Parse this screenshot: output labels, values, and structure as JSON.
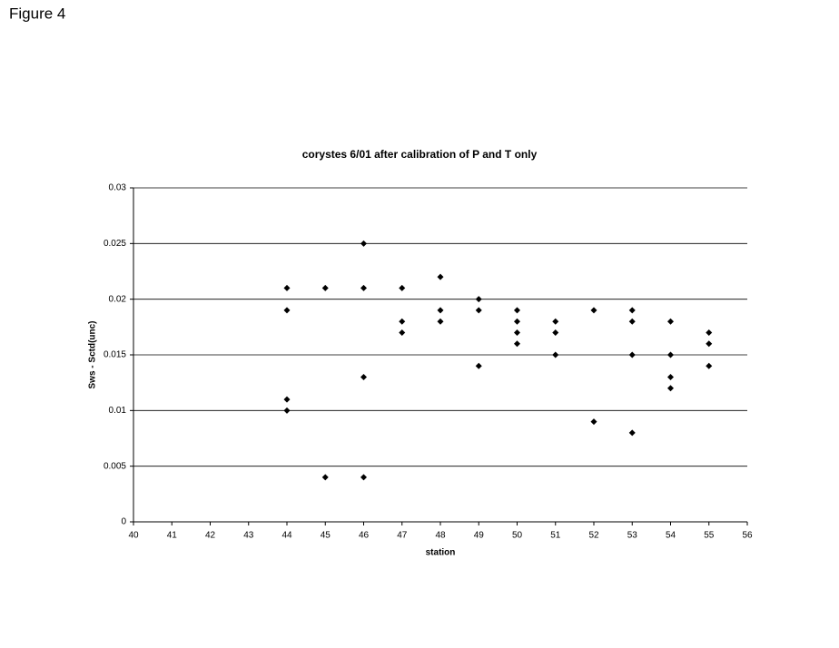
{
  "figure_label": "Figure 4",
  "chart_data": {
    "type": "scatter",
    "title": "corystes 6/01 after calibration of P and T only",
    "x_label": "station",
    "y_label": "Sws - Sctd(unc)",
    "x": [
      44,
      44,
      44,
      44,
      45,
      45,
      46,
      46,
      46,
      46,
      47,
      47,
      47,
      48,
      48,
      48,
      49,
      49,
      49,
      50,
      50,
      50,
      50,
      51,
      51,
      51,
      52,
      52,
      53,
      53,
      53,
      53,
      54,
      54,
      54,
      54,
      55,
      55,
      55
    ],
    "values": [
      0.021,
      0.019,
      0.011,
      0.01,
      0.021,
      0.004,
      0.025,
      0.021,
      0.013,
      0.004,
      0.021,
      0.018,
      0.017,
      0.022,
      0.019,
      0.018,
      0.02,
      0.019,
      0.014,
      0.019,
      0.018,
      0.017,
      0.016,
      0.018,
      0.017,
      0.015,
      0.019,
      0.009,
      0.019,
      0.018,
      0.015,
      0.008,
      0.018,
      0.015,
      0.013,
      0.012,
      0.017,
      0.016,
      0.014
    ],
    "color": "#000000",
    "xlim": [
      40,
      56
    ],
    "xticks": [
      40,
      41,
      42,
      43,
      44,
      45,
      46,
      47,
      48,
      49,
      50,
      51,
      52,
      53,
      54,
      55,
      56
    ],
    "ylim": [
      0,
      0.03
    ],
    "yticks": [
      0,
      0.005,
      0.01,
      0.015,
      0.02,
      0.025,
      0.03
    ],
    "grid": true
  }
}
